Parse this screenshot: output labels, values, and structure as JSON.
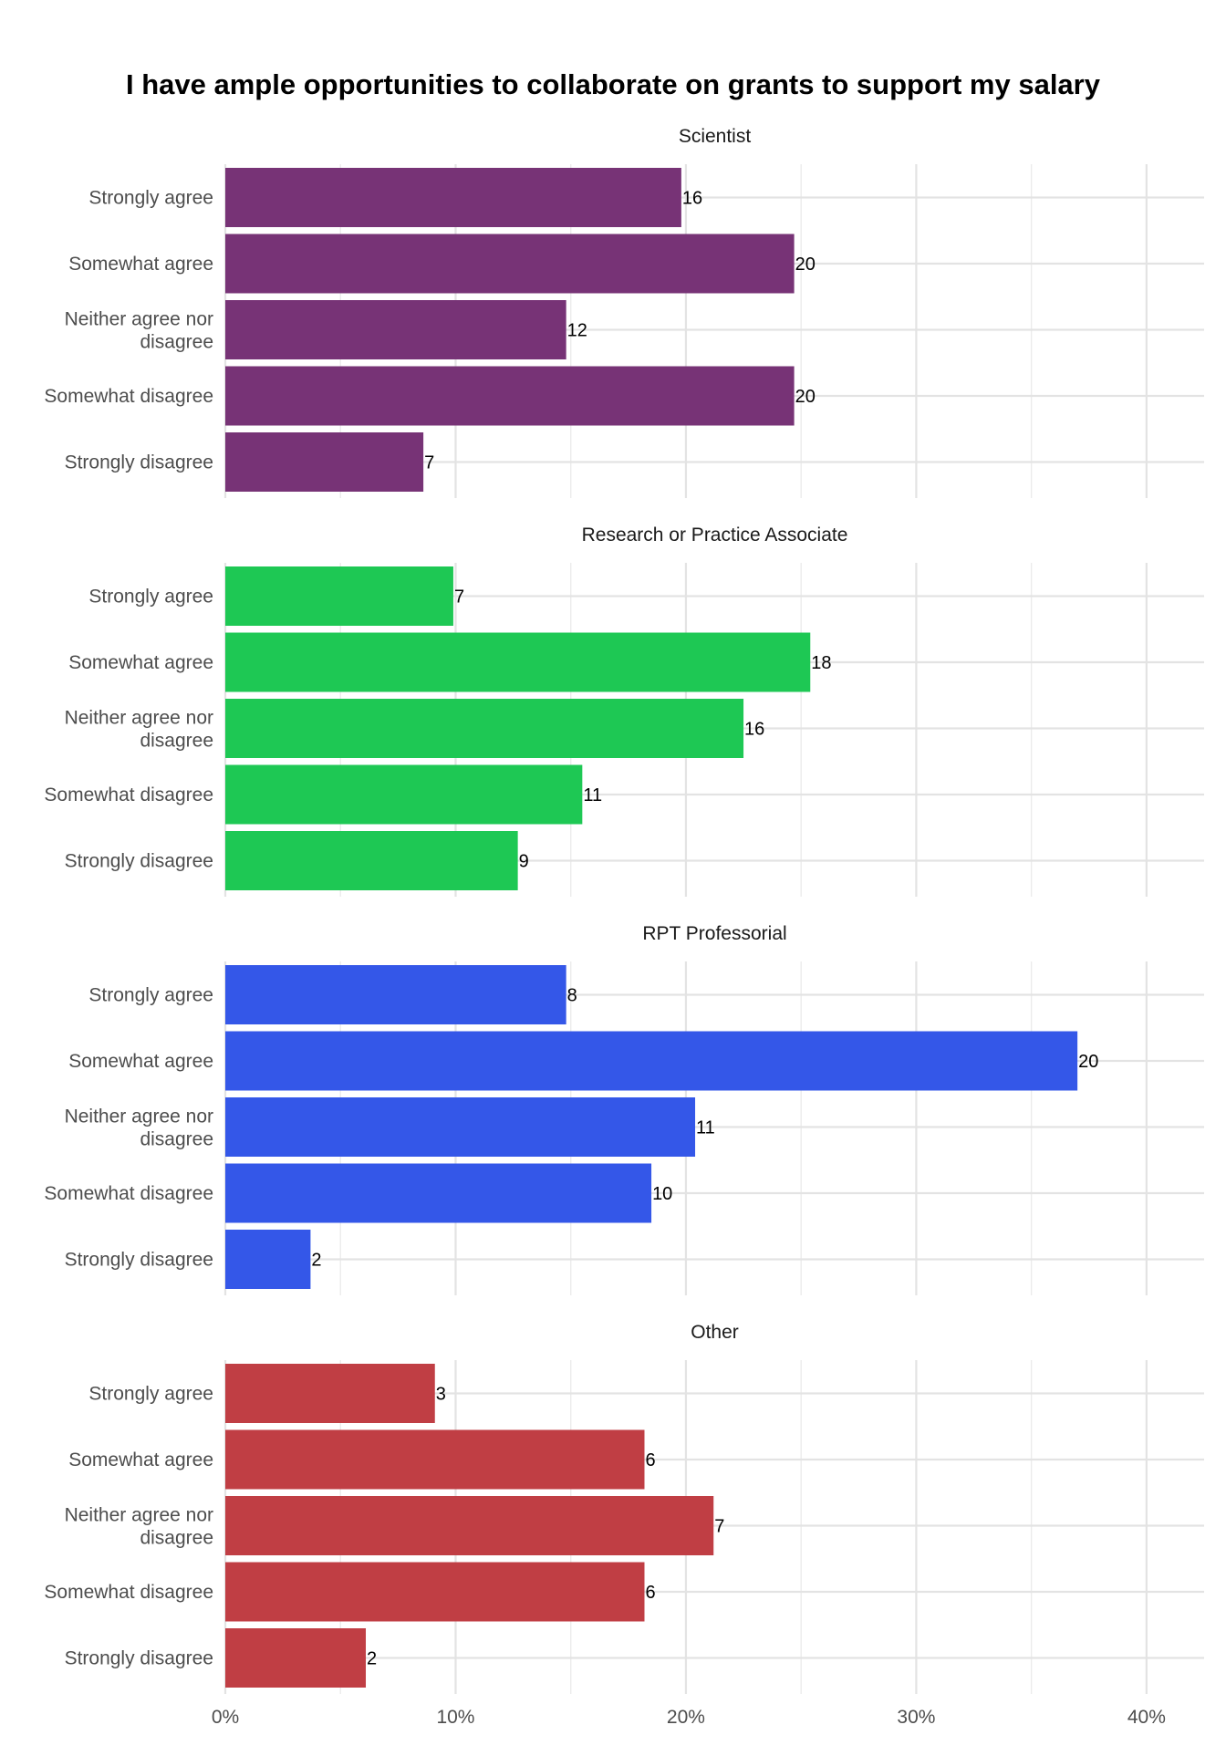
{
  "chart_data": {
    "type": "bar",
    "orientation": "horizontal",
    "title": "I have ample opportunities to collaborate on grants to support my salary",
    "xlabel": "",
    "ylabel": "",
    "xlim": [
      0,
      42.5
    ],
    "x_ticks": [
      0,
      10,
      20,
      30,
      40
    ],
    "x_tick_labels": [
      "0%",
      "10%",
      "20%",
      "30%",
      "40%"
    ],
    "grid": true,
    "legend": "none",
    "categories": [
      [
        "Strongly agree"
      ],
      [
        "Somewhat agree"
      ],
      [
        "Neither agree nor",
        "disagree"
      ],
      [
        "Somewhat disagree"
      ],
      [
        "Strongly disagree"
      ]
    ],
    "facets": [
      {
        "name": "Scientist",
        "color": "#773376",
        "percent": [
          19.8,
          24.7,
          14.8,
          24.7,
          8.6
        ],
        "counts": [
          "16",
          "20",
          "12",
          "20",
          "7"
        ]
      },
      {
        "name": "Research or Practice Associate",
        "color": "#1ec854",
        "percent": [
          9.9,
          25.4,
          22.5,
          15.5,
          12.7
        ],
        "counts": [
          "7",
          "18",
          "16",
          "11",
          "9"
        ]
      },
      {
        "name": "RPT Professorial",
        "color": "#3457e8",
        "percent": [
          14.8,
          37.0,
          20.4,
          18.5,
          3.7
        ],
        "counts": [
          "8",
          "20",
          "11",
          "10",
          "2"
        ]
      },
      {
        "name": "Other",
        "color": "#c03e44",
        "percent": [
          9.1,
          18.2,
          21.2,
          18.2,
          6.1
        ],
        "counts": [
          "3",
          "6",
          "7",
          "6",
          "2"
        ]
      }
    ]
  }
}
